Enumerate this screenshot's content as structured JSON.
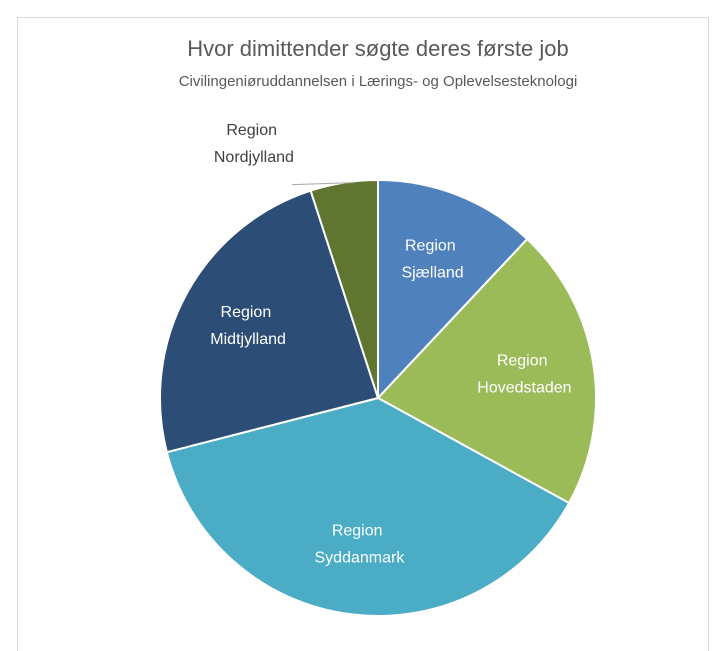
{
  "chart_data": {
    "type": "pie",
    "title": "Hvor dimittender søgte deres første job",
    "subtitle": "Civilingeniøruddannelsen i Lærings- og Oplevelsesteknologi",
    "categories": [
      "Region Sjælland",
      "Region Hovedstaden",
      "Region Syddanmark",
      "Region Midtjylland",
      "Region Nordjylland"
    ],
    "values": [
      12,
      21,
      38,
      24,
      5
    ],
    "colors": [
      "#4f81bd",
      "#9bbb59",
      "#4bacc6",
      "#2c4d75",
      "#5f7530"
    ]
  }
}
